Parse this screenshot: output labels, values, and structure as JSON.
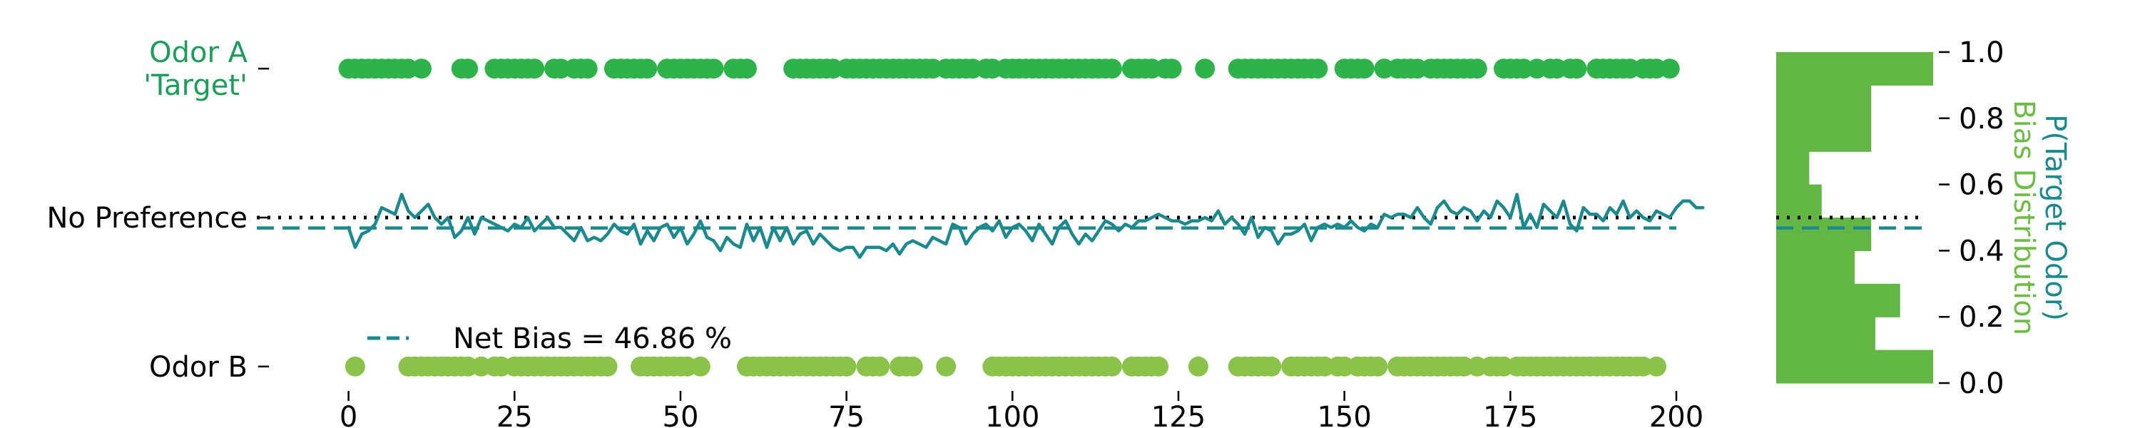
{
  "chart_data": [
    {
      "type": "scatter",
      "x_axis": {
        "ticks": [
          0,
          25,
          50,
          75,
          100,
          125,
          150,
          175,
          200
        ],
        "xlim": [
          -2,
          200
        ]
      },
      "y_axis": {
        "ylim": [
          0,
          1
        ],
        "categories": [
          {
            "label": "Odor A\n'Target'",
            "y": 0.95,
            "color": "#1a9e5a"
          },
          {
            "label": "No Preference",
            "y": 0.5,
            "color": "#000000"
          },
          {
            "label": "Odor B",
            "y": 0.05,
            "color": "#000000"
          }
        ]
      },
      "series": [
        {
          "kind": "scatter",
          "color": "#2db34a",
          "y": 0.95,
          "x": [
            0,
            1,
            2,
            3,
            4,
            5,
            6,
            7,
            8,
            9,
            11,
            17,
            18,
            22,
            23,
            24,
            25,
            26,
            27,
            28,
            31,
            32,
            34,
            35,
            36,
            40,
            41,
            42,
            43,
            44,
            45,
            48,
            49,
            50,
            51,
            52,
            53,
            54,
            55,
            58,
            59,
            60,
            67,
            68,
            69,
            70,
            71,
            72,
            73,
            75,
            76,
            77,
            78,
            79,
            80,
            81,
            82,
            83,
            84,
            85,
            86,
            87,
            88,
            90,
            91,
            92,
            93,
            94,
            96,
            97,
            99,
            100,
            101,
            102,
            103,
            104,
            105,
            106,
            107,
            108,
            109,
            110,
            111,
            112,
            113,
            114,
            115,
            118,
            119,
            120,
            121,
            123,
            124,
            129,
            134,
            135,
            136,
            137,
            138,
            139,
            140,
            141,
            142,
            143,
            144,
            145,
            146,
            150,
            151,
            152,
            153,
            156,
            158,
            159,
            160,
            161,
            163,
            164,
            165,
            166,
            167,
            168,
            169,
            170,
            174,
            175,
            176,
            177,
            179,
            181,
            182,
            184,
            185,
            188,
            189,
            190,
            191,
            192,
            193,
            195,
            196,
            197,
            199
          ]
        },
        {
          "kind": "scatter",
          "color": "#8bc34a",
          "y": 0.05,
          "x": [
            1,
            9,
            10,
            11,
            12,
            13,
            14,
            15,
            16,
            17,
            18,
            20,
            22,
            23,
            25,
            26,
            27,
            28,
            29,
            30,
            31,
            32,
            33,
            34,
            35,
            36,
            37,
            38,
            39,
            44,
            45,
            46,
            47,
            48,
            49,
            50,
            51,
            53,
            60,
            61,
            62,
            63,
            64,
            65,
            66,
            67,
            68,
            69,
            70,
            71,
            72,
            73,
            74,
            75,
            78,
            79,
            80,
            83,
            84,
            85,
            90,
            97,
            98,
            99,
            100,
            101,
            102,
            103,
            104,
            105,
            106,
            107,
            108,
            109,
            110,
            111,
            112,
            113,
            114,
            115,
            118,
            119,
            120,
            121,
            122,
            128,
            134,
            135,
            136,
            137,
            138,
            139,
            142,
            143,
            144,
            145,
            146,
            147,
            149,
            150,
            152,
            153,
            154,
            155,
            158,
            159,
            160,
            161,
            162,
            163,
            164,
            165,
            166,
            167,
            168,
            170,
            172,
            173,
            174,
            176,
            177,
            178,
            179,
            180,
            181,
            182,
            183,
            184,
            185,
            186,
            187,
            188,
            189,
            190,
            191,
            192,
            193,
            194,
            195,
            197
          ]
        },
        {
          "kind": "line",
          "color": "#1b8a8f",
          "x_start": 0,
          "y": [
            0.47,
            0.41,
            0.45,
            0.46,
            0.48,
            0.53,
            0.52,
            0.51,
            0.57,
            0.52,
            0.5,
            0.52,
            0.54,
            0.5,
            0.48,
            0.5,
            0.44,
            0.46,
            0.5,
            0.45,
            0.5,
            0.49,
            0.48,
            0.47,
            0.46,
            0.48,
            0.47,
            0.5,
            0.46,
            0.48,
            0.5,
            0.47,
            0.47,
            0.45,
            0.43,
            0.47,
            0.43,
            0.44,
            0.43,
            0.45,
            0.48,
            0.46,
            0.45,
            0.48,
            0.42,
            0.46,
            0.43,
            0.47,
            0.48,
            0.44,
            0.47,
            0.42,
            0.45,
            0.49,
            0.44,
            0.43,
            0.4,
            0.44,
            0.42,
            0.41,
            0.48,
            0.43,
            0.47,
            0.41,
            0.47,
            0.43,
            0.47,
            0.42,
            0.45,
            0.46,
            0.42,
            0.45,
            0.43,
            0.41,
            0.4,
            0.41,
            0.41,
            0.38,
            0.41,
            0.41,
            0.41,
            0.4,
            0.42,
            0.39,
            0.42,
            0.43,
            0.42,
            0.41,
            0.44,
            0.43,
            0.42,
            0.48,
            0.47,
            0.42,
            0.45,
            0.47,
            0.48,
            0.46,
            0.49,
            0.44,
            0.47,
            0.48,
            0.46,
            0.43,
            0.48,
            0.45,
            0.42,
            0.47,
            0.49,
            0.45,
            0.42,
            0.45,
            0.43,
            0.46,
            0.49,
            0.48,
            0.46,
            0.48,
            0.47,
            0.49,
            0.49,
            0.5,
            0.51,
            0.5,
            0.49,
            0.49,
            0.48,
            0.49,
            0.49,
            0.5,
            0.49,
            0.52,
            0.48,
            0.5,
            0.48,
            0.45,
            0.5,
            0.44,
            0.47,
            0.46,
            0.42,
            0.45,
            0.45,
            0.46,
            0.48,
            0.43,
            0.47,
            0.48,
            0.47,
            0.48,
            0.47,
            0.49,
            0.47,
            0.46,
            0.48,
            0.47,
            0.51,
            0.5,
            0.51,
            0.51,
            0.5,
            0.53,
            0.5,
            0.48,
            0.53,
            0.55,
            0.52,
            0.51,
            0.53,
            0.52,
            0.49,
            0.52,
            0.5,
            0.55,
            0.53,
            0.5,
            0.57,
            0.47,
            0.51,
            0.47,
            0.54,
            0.52,
            0.5,
            0.55,
            0.48,
            0.46,
            0.53,
            0.51,
            0.51,
            0.49,
            0.53,
            0.51,
            0.55,
            0.5,
            0.52,
            0.5,
            0.49,
            0.52,
            0.51,
            0.5,
            0.53,
            0.55,
            0.55,
            0.53,
            0.53
          ]
        }
      ],
      "reference_lines": [
        {
          "label": "No Preference",
          "y": 0.5,
          "style": "dotted",
          "color": "#000000"
        },
        {
          "label": "Net Bias = 46.86 %",
          "y": 0.4686,
          "style": "dashed",
          "color": "#1b8a8f"
        }
      ],
      "legend": {
        "placement": "lower-left",
        "entries": [
          "Net Bias = 46.86 %"
        ]
      }
    },
    {
      "type": "histogram",
      "orientation": "horizontal",
      "color": "#62b744",
      "bins": [
        {
          "range": [
            0.0,
            0.1
          ],
          "count": 38
        },
        {
          "range": [
            0.1,
            0.2
          ],
          "count": 24
        },
        {
          "range": [
            0.2,
            0.3
          ],
          "count": 30
        },
        {
          "range": [
            0.3,
            0.4
          ],
          "count": 19
        },
        {
          "range": [
            0.4,
            0.5
          ],
          "count": 23
        },
        {
          "range": [
            0.5,
            0.6
          ],
          "count": 11
        },
        {
          "range": [
            0.6,
            0.7
          ],
          "count": 8
        },
        {
          "range": [
            0.7,
            0.8
          ],
          "count": 23
        },
        {
          "range": [
            0.8,
            0.9
          ],
          "count": 23
        },
        {
          "range": [
            0.9,
            1.0
          ],
          "count": 38
        }
      ],
      "y_axis": {
        "ticks": [
          "0.0",
          "0.2",
          "0.4",
          "0.6",
          "0.8",
          "1.0"
        ],
        "ylim": [
          0,
          1
        ]
      },
      "ylabel_primary": {
        "text": "P(Target Odor)",
        "color": "#1b8a8f"
      },
      "ylabel_secondary": {
        "text": "Bias Distribution",
        "color": "#6dbd45"
      },
      "reference_lines": [
        {
          "y": 0.5,
          "style": "dotted",
          "color": "#000000"
        },
        {
          "y": 0.4686,
          "style": "dashed",
          "color": "#1b8a8f"
        }
      ]
    }
  ]
}
